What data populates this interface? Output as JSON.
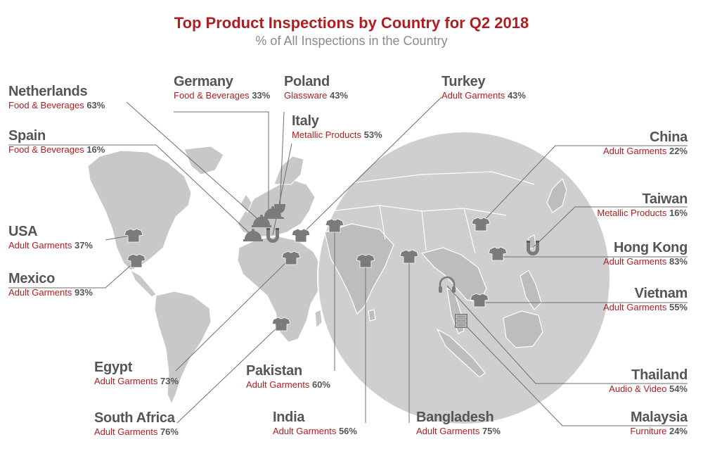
{
  "colors": {
    "title": "#b01e22",
    "subtitle": "#8a8a8a",
    "country": "#555555",
    "category": "#b01e22",
    "percent": "#555555",
    "land": "#c8c8c8",
    "circle": "#cfcfcf",
    "leader": "#6e6e6e",
    "icon": "#7b7b7b"
  },
  "header": {
    "title": "Top Product Inspections by Country for Q2 2018",
    "subtitle": "% of All Inspections in the Country"
  },
  "countries": [
    {
      "key": "netherlands",
      "name": "Netherlands",
      "category": "Food & Beverages",
      "percent": "63%",
      "icon": "food-cloche-icon"
    },
    {
      "key": "spain",
      "name": "Spain",
      "category": "Food & Beverages",
      "percent": "16%",
      "icon": "food-cloche-icon"
    },
    {
      "key": "usa",
      "name": "USA",
      "category": "Adult Garments",
      "percent": "37%",
      "icon": "tshirt-icon"
    },
    {
      "key": "mexico",
      "name": "Mexico",
      "category": "Adult Garments",
      "percent": "93%",
      "icon": "tshirt-icon"
    },
    {
      "key": "germany",
      "name": "Germany",
      "category": "Food & Beverages",
      "percent": "33%",
      "icon": "food-cloche-icon"
    },
    {
      "key": "poland",
      "name": "Poland",
      "category": "Glassware",
      "percent": "43%",
      "icon": "wine-glass-icon"
    },
    {
      "key": "italy",
      "name": "Italy",
      "category": "Metallic Products",
      "percent": "53%",
      "icon": "magnet-icon"
    },
    {
      "key": "turkey",
      "name": "Turkey",
      "category": "Adult Garments",
      "percent": "43%",
      "icon": "tshirt-icon"
    },
    {
      "key": "egypt",
      "name": "Egypt",
      "category": "Adult Garments",
      "percent": "73%",
      "icon": "tshirt-icon"
    },
    {
      "key": "south-africa",
      "name": "South Africa",
      "category": "Adult Garments",
      "percent": "76%",
      "icon": "tshirt-icon"
    },
    {
      "key": "pakistan",
      "name": "Pakistan",
      "category": "Adult Garments",
      "percent": "60%",
      "icon": "tshirt-icon"
    },
    {
      "key": "india",
      "name": "India",
      "category": "Adult Garments",
      "percent": "56%",
      "icon": "tshirt-icon"
    },
    {
      "key": "bangladesh",
      "name": "Bangladesh",
      "category": "Adult Garments",
      "percent": "75%",
      "icon": "tshirt-icon"
    },
    {
      "key": "china",
      "name": "China",
      "category": "Adult Garments",
      "percent": "22%",
      "icon": "tshirt-icon"
    },
    {
      "key": "taiwan",
      "name": "Taiwan",
      "category": "Metallic Products",
      "percent": "16%",
      "icon": "magnet-icon"
    },
    {
      "key": "hong-kong",
      "name": "Hong Kong",
      "category": "Adult Garments",
      "percent": "83%",
      "icon": "tshirt-icon"
    },
    {
      "key": "vietnam",
      "name": "Vietnam",
      "category": "Adult Garments",
      "percent": "55%",
      "icon": "tshirt-icon"
    },
    {
      "key": "thailand",
      "name": "Thailand",
      "category": "Audio & Video",
      "percent": "54%",
      "icon": "headphones-icon"
    },
    {
      "key": "malaysia",
      "name": "Malaysia",
      "category": "Furniture",
      "percent": "24%",
      "icon": "cabinet-icon"
    }
  ]
}
